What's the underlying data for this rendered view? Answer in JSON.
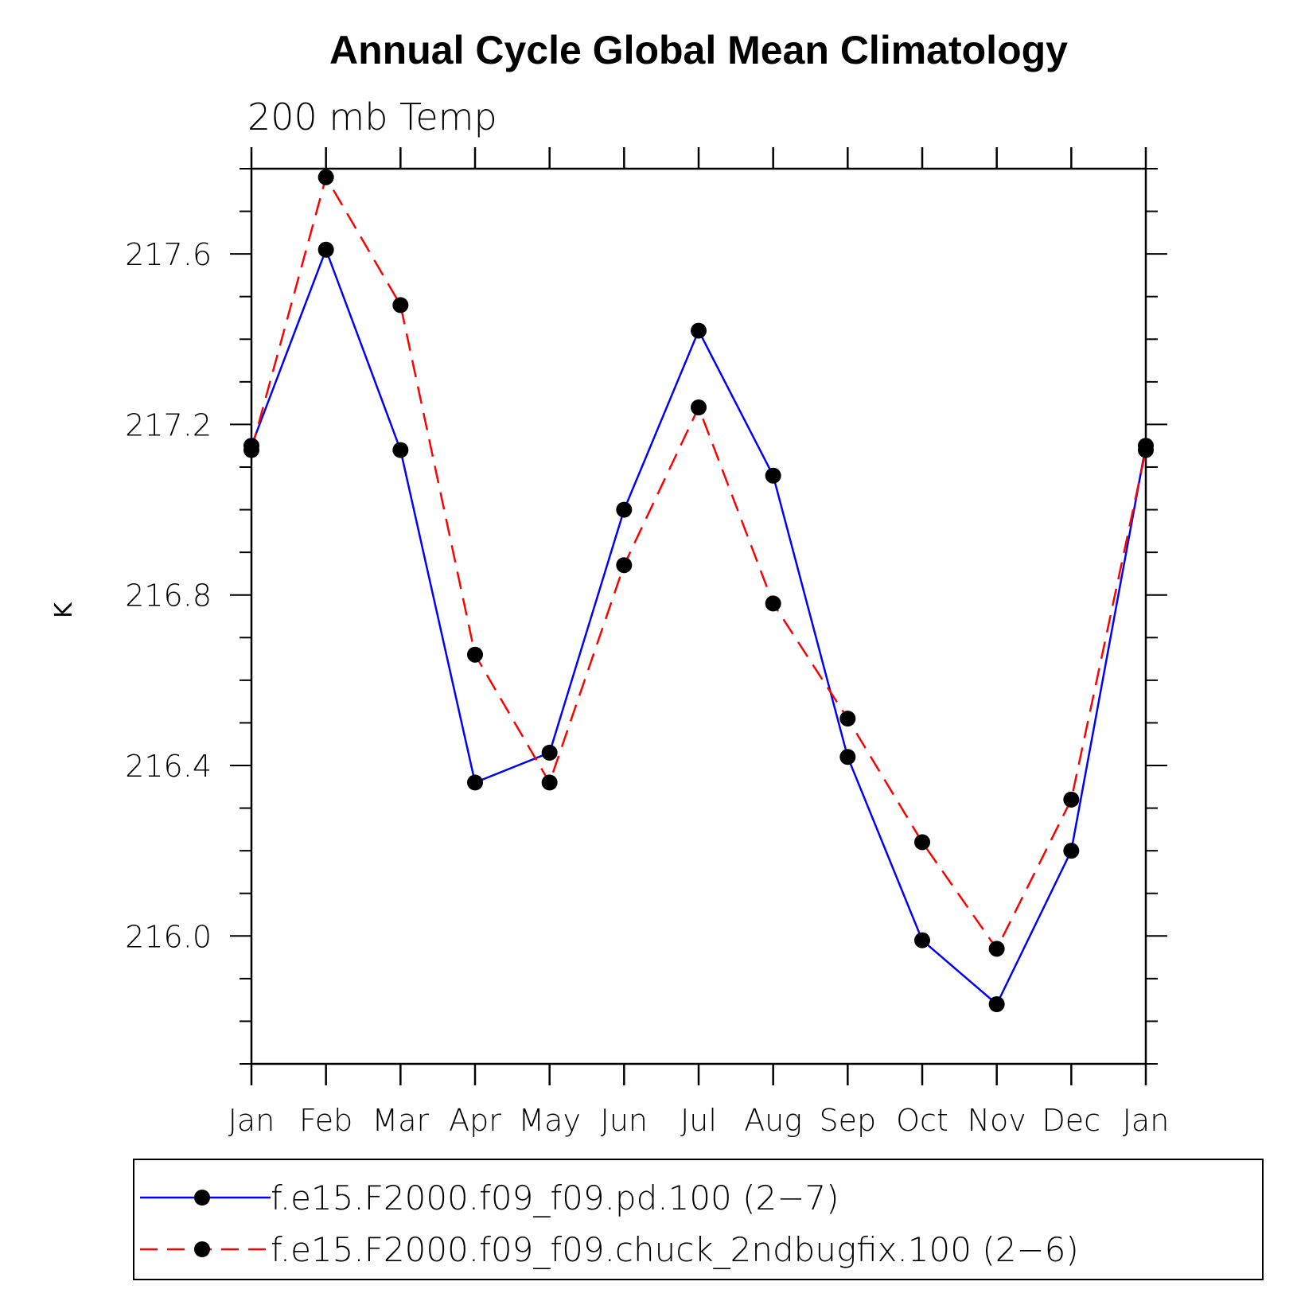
{
  "chart_data": {
    "type": "line",
    "title": "Annual Cycle Global Mean Climatology",
    "subtitle": "200 mb Temp",
    "xlabel": "",
    "ylabel": "K",
    "categories": [
      "Jan",
      "Feb",
      "Mar",
      "Apr",
      "May",
      "Jun",
      "Jul",
      "Aug",
      "Sep",
      "Oct",
      "Nov",
      "Dec",
      "Jan"
    ],
    "yticks": [
      "216.0",
      "216.4",
      "216.8",
      "217.2",
      "217.6"
    ],
    "ylim": [
      215.7,
      217.8
    ],
    "grid": false,
    "legend_position": "bottom",
    "series": [
      {
        "name": "f.e15.F2000.f09_f09.pd.100 (2−7)",
        "color": "#0000ff",
        "dash": "solid",
        "marker": "filled-circle",
        "values": [
          217.15,
          217.61,
          217.14,
          216.36,
          216.43,
          217.0,
          217.42,
          217.08,
          216.42,
          215.99,
          215.84,
          216.2,
          217.15
        ]
      },
      {
        "name": "f.e15.F2000.f09_f09.chuck_2ndbugfix.100 (2−6)",
        "color": "#ff0000",
        "dash": "dashed",
        "marker": "filled-circle",
        "values": [
          217.14,
          217.78,
          217.48,
          216.66,
          216.36,
          216.87,
          217.24,
          216.78,
          216.51,
          216.22,
          215.97,
          216.32,
          217.14
        ]
      }
    ]
  }
}
